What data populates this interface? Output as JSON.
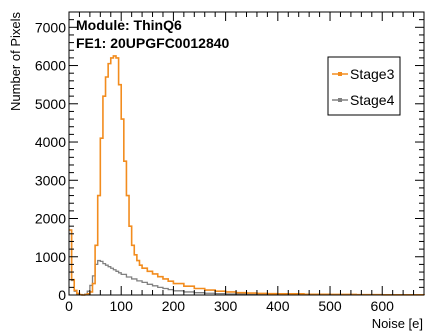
{
  "chart_data": {
    "type": "line",
    "title": "",
    "annotations": [
      "Module: ThinQ6",
      "FE1: 20UPGFC0012840"
    ],
    "xlabel": "Noise [e]",
    "ylabel": "Number of Pixels",
    "xlim": [
      0,
      680
    ],
    "ylim": [
      0,
      7400
    ],
    "x_ticks": [
      0,
      100,
      200,
      300,
      400,
      500,
      600
    ],
    "y_ticks": [
      0,
      1000,
      2000,
      3000,
      4000,
      5000,
      6000,
      7000
    ],
    "grid": false,
    "legend_position": "top-right",
    "series": [
      {
        "name": "Stage3",
        "color": "#f28c1e",
        "marker": "square",
        "x": [
          0,
          5,
          10,
          15,
          20,
          25,
          30,
          35,
          40,
          45,
          50,
          55,
          60,
          65,
          70,
          75,
          80,
          85,
          90,
          95,
          100,
          105,
          110,
          115,
          120,
          125,
          130,
          135,
          140,
          150,
          160,
          170,
          180,
          190,
          200,
          220,
          240,
          260,
          280,
          300,
          320,
          340,
          360,
          380,
          400,
          450,
          500,
          550,
          600,
          680
        ],
        "values": [
          1700,
          400,
          120,
          40,
          10,
          0,
          10,
          30,
          80,
          300,
          1300,
          2600,
          4100,
          5200,
          5700,
          6050,
          6200,
          6250,
          6200,
          5500,
          4600,
          3500,
          2600,
          1800,
          1300,
          1050,
          900,
          780,
          700,
          620,
          550,
          480,
          420,
          360,
          300,
          230,
          170,
          130,
          100,
          80,
          60,
          50,
          40,
          35,
          30,
          20,
          15,
          10,
          5,
          0
        ]
      },
      {
        "name": "Stage4",
        "color": "#808080",
        "marker": "square",
        "x": [
          0,
          5,
          10,
          15,
          20,
          25,
          30,
          35,
          40,
          45,
          50,
          55,
          60,
          65,
          70,
          75,
          80,
          85,
          90,
          95,
          100,
          110,
          120,
          130,
          140,
          150,
          160,
          170,
          180,
          190,
          200,
          220,
          240,
          260,
          280,
          300,
          340,
          400,
          500,
          680
        ],
        "values": [
          1700,
          380,
          100,
          30,
          10,
          0,
          20,
          100,
          250,
          500,
          800,
          900,
          880,
          820,
          780,
          740,
          700,
          660,
          620,
          580,
          540,
          470,
          420,
          370,
          330,
          280,
          240,
          200,
          170,
          140,
          110,
          80,
          60,
          45,
          35,
          25,
          15,
          10,
          5,
          0
        ]
      }
    ]
  }
}
